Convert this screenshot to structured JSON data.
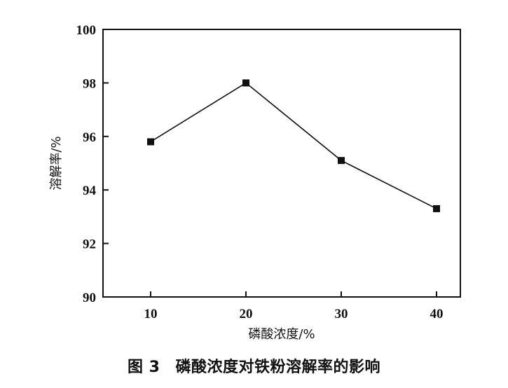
{
  "chart_data": {
    "type": "line",
    "x": [
      10,
      20,
      30,
      40
    ],
    "series": [
      {
        "values": [
          95.8,
          98.0,
          95.1,
          93.3
        ]
      }
    ],
    "xticks": [
      "10",
      "20",
      "30",
      "40"
    ],
    "yticks": [
      "90",
      "92",
      "94",
      "96",
      "98",
      "100"
    ],
    "xlabel": "磷酸浓度/%",
    "ylabel": "溶解率/%",
    "xlim": [
      5,
      42.5
    ],
    "ylim": [
      90,
      100
    ],
    "marker": "square",
    "grid": false,
    "line_color": "#111111"
  },
  "caption": {
    "number": "图 3",
    "text": "磷酸浓度对铁粉溶解率的影响"
  }
}
